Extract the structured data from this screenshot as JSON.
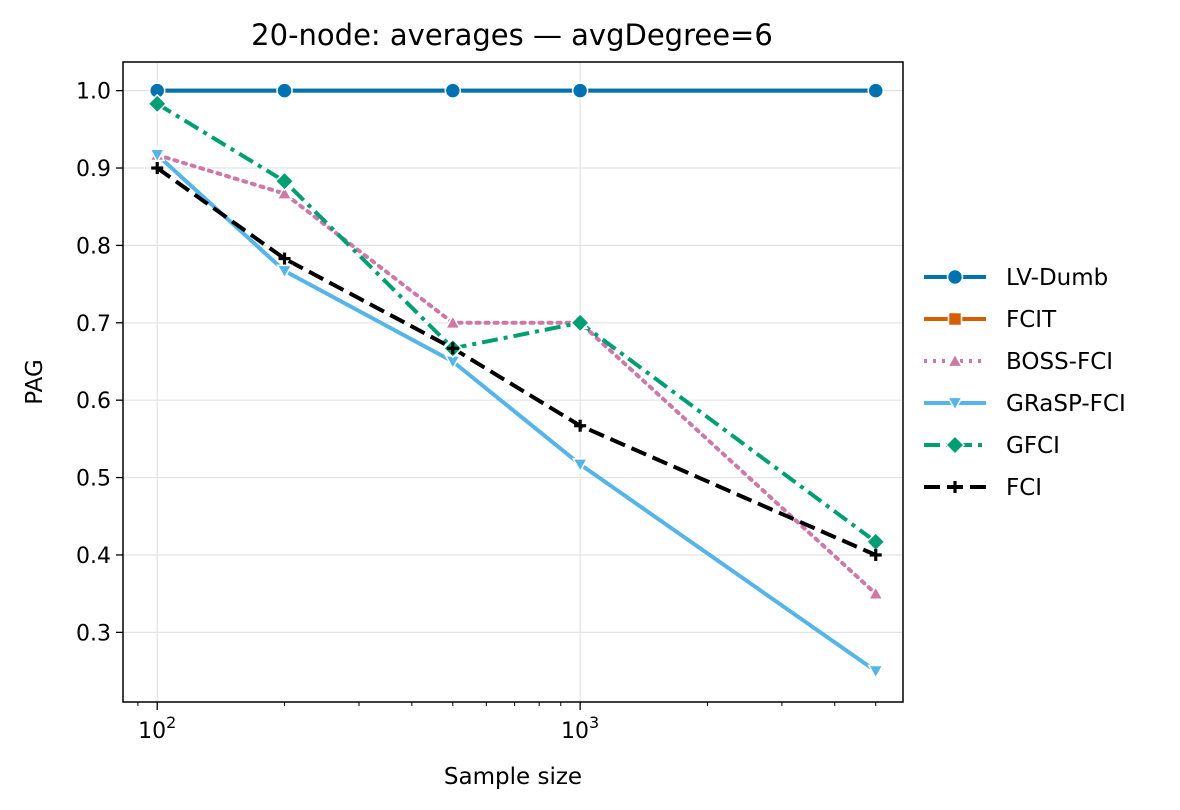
{
  "chart_data": {
    "type": "line",
    "title": "20-node: averages — avgDegree=6",
    "xlabel": "Sample size",
    "ylabel": "PAG",
    "xscale": "log",
    "xlim": [
      83,
      5800
    ],
    "ylim": [
      0.21,
      1.037
    ],
    "grid": true,
    "legend_position": "outside-right",
    "x": [
      100,
      200,
      500,
      1000,
      5000
    ],
    "xticks": [
      {
        "value": 100,
        "base": "10",
        "exp": "2"
      },
      {
        "value": 1000,
        "base": "10",
        "exp": "3"
      }
    ],
    "yticks": [
      {
        "value": 0.3,
        "label": "0.3"
      },
      {
        "value": 0.4,
        "label": "0.4"
      },
      {
        "value": 0.5,
        "label": "0.5"
      },
      {
        "value": 0.6,
        "label": "0.6"
      },
      {
        "value": 0.7,
        "label": "0.7"
      },
      {
        "value": 0.8,
        "label": "0.8"
      },
      {
        "value": 0.9,
        "label": "0.9"
      },
      {
        "value": 1.0,
        "label": "1.0"
      }
    ],
    "series": [
      {
        "name": "LV-Dumb",
        "values": [
          1.0,
          1.0,
          1.0,
          1.0,
          1.0
        ],
        "color": "#0072b2",
        "dash": "solid",
        "marker": "circle"
      },
      {
        "name": "FCIT",
        "values": [
          1.0,
          1.0,
          1.0,
          1.0,
          1.0
        ],
        "color": "#d55e00",
        "dash": "solid",
        "marker": "square"
      },
      {
        "name": "BOSS-FCI",
        "values": [
          0.917,
          0.867,
          0.7,
          0.7,
          0.35
        ],
        "color": "#cc79a7",
        "dash": "dotted",
        "marker": "triangle-up"
      },
      {
        "name": "GRaSP-FCI",
        "values": [
          0.917,
          0.767,
          0.65,
          0.517,
          0.25
        ],
        "color": "#56b4e9",
        "dash": "solid",
        "marker": "triangle-down"
      },
      {
        "name": "GFCI",
        "values": [
          0.983,
          0.883,
          0.667,
          0.7,
          0.417
        ],
        "color": "#009e73",
        "dash": "dashdot",
        "marker": "diamond"
      },
      {
        "name": "FCI",
        "values": [
          0.9,
          0.783,
          0.667,
          0.567,
          0.4
        ],
        "color": "#000000",
        "dash": "dashed",
        "marker": "plus"
      }
    ]
  }
}
